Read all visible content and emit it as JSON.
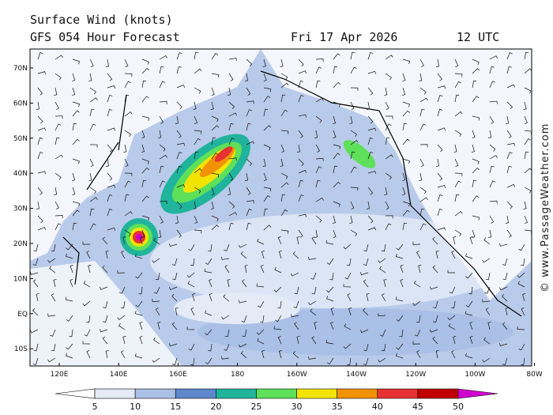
{
  "header": {
    "title": "Surface Wind (knots)",
    "subtitle": "GFS 054 Hour Forecast",
    "date": "Fri 17 Apr 2026",
    "time": "12 UTC"
  },
  "map": {
    "lat_labels": [
      "70N",
      "60N",
      "50N",
      "40N",
      "30N",
      "20N",
      "10N",
      "EQ",
      "10S"
    ],
    "lon_labels": [
      "120E",
      "140E",
      "160E",
      "180",
      "160W",
      "140W",
      "120W",
      "100W",
      "80W"
    ]
  },
  "colorbar": {
    "ticks": [
      5,
      10,
      15,
      20,
      25,
      30,
      35,
      40,
      45,
      50
    ],
    "colors": [
      "#ffffff",
      "#e4ebf7",
      "#aac0e6",
      "#5f88cc",
      "#20b49c",
      "#5ee05a",
      "#f2e400",
      "#f29200",
      "#e63232",
      "#c00000",
      "#d000d0"
    ]
  },
  "watermark": "© www.PassageWeather.com"
}
